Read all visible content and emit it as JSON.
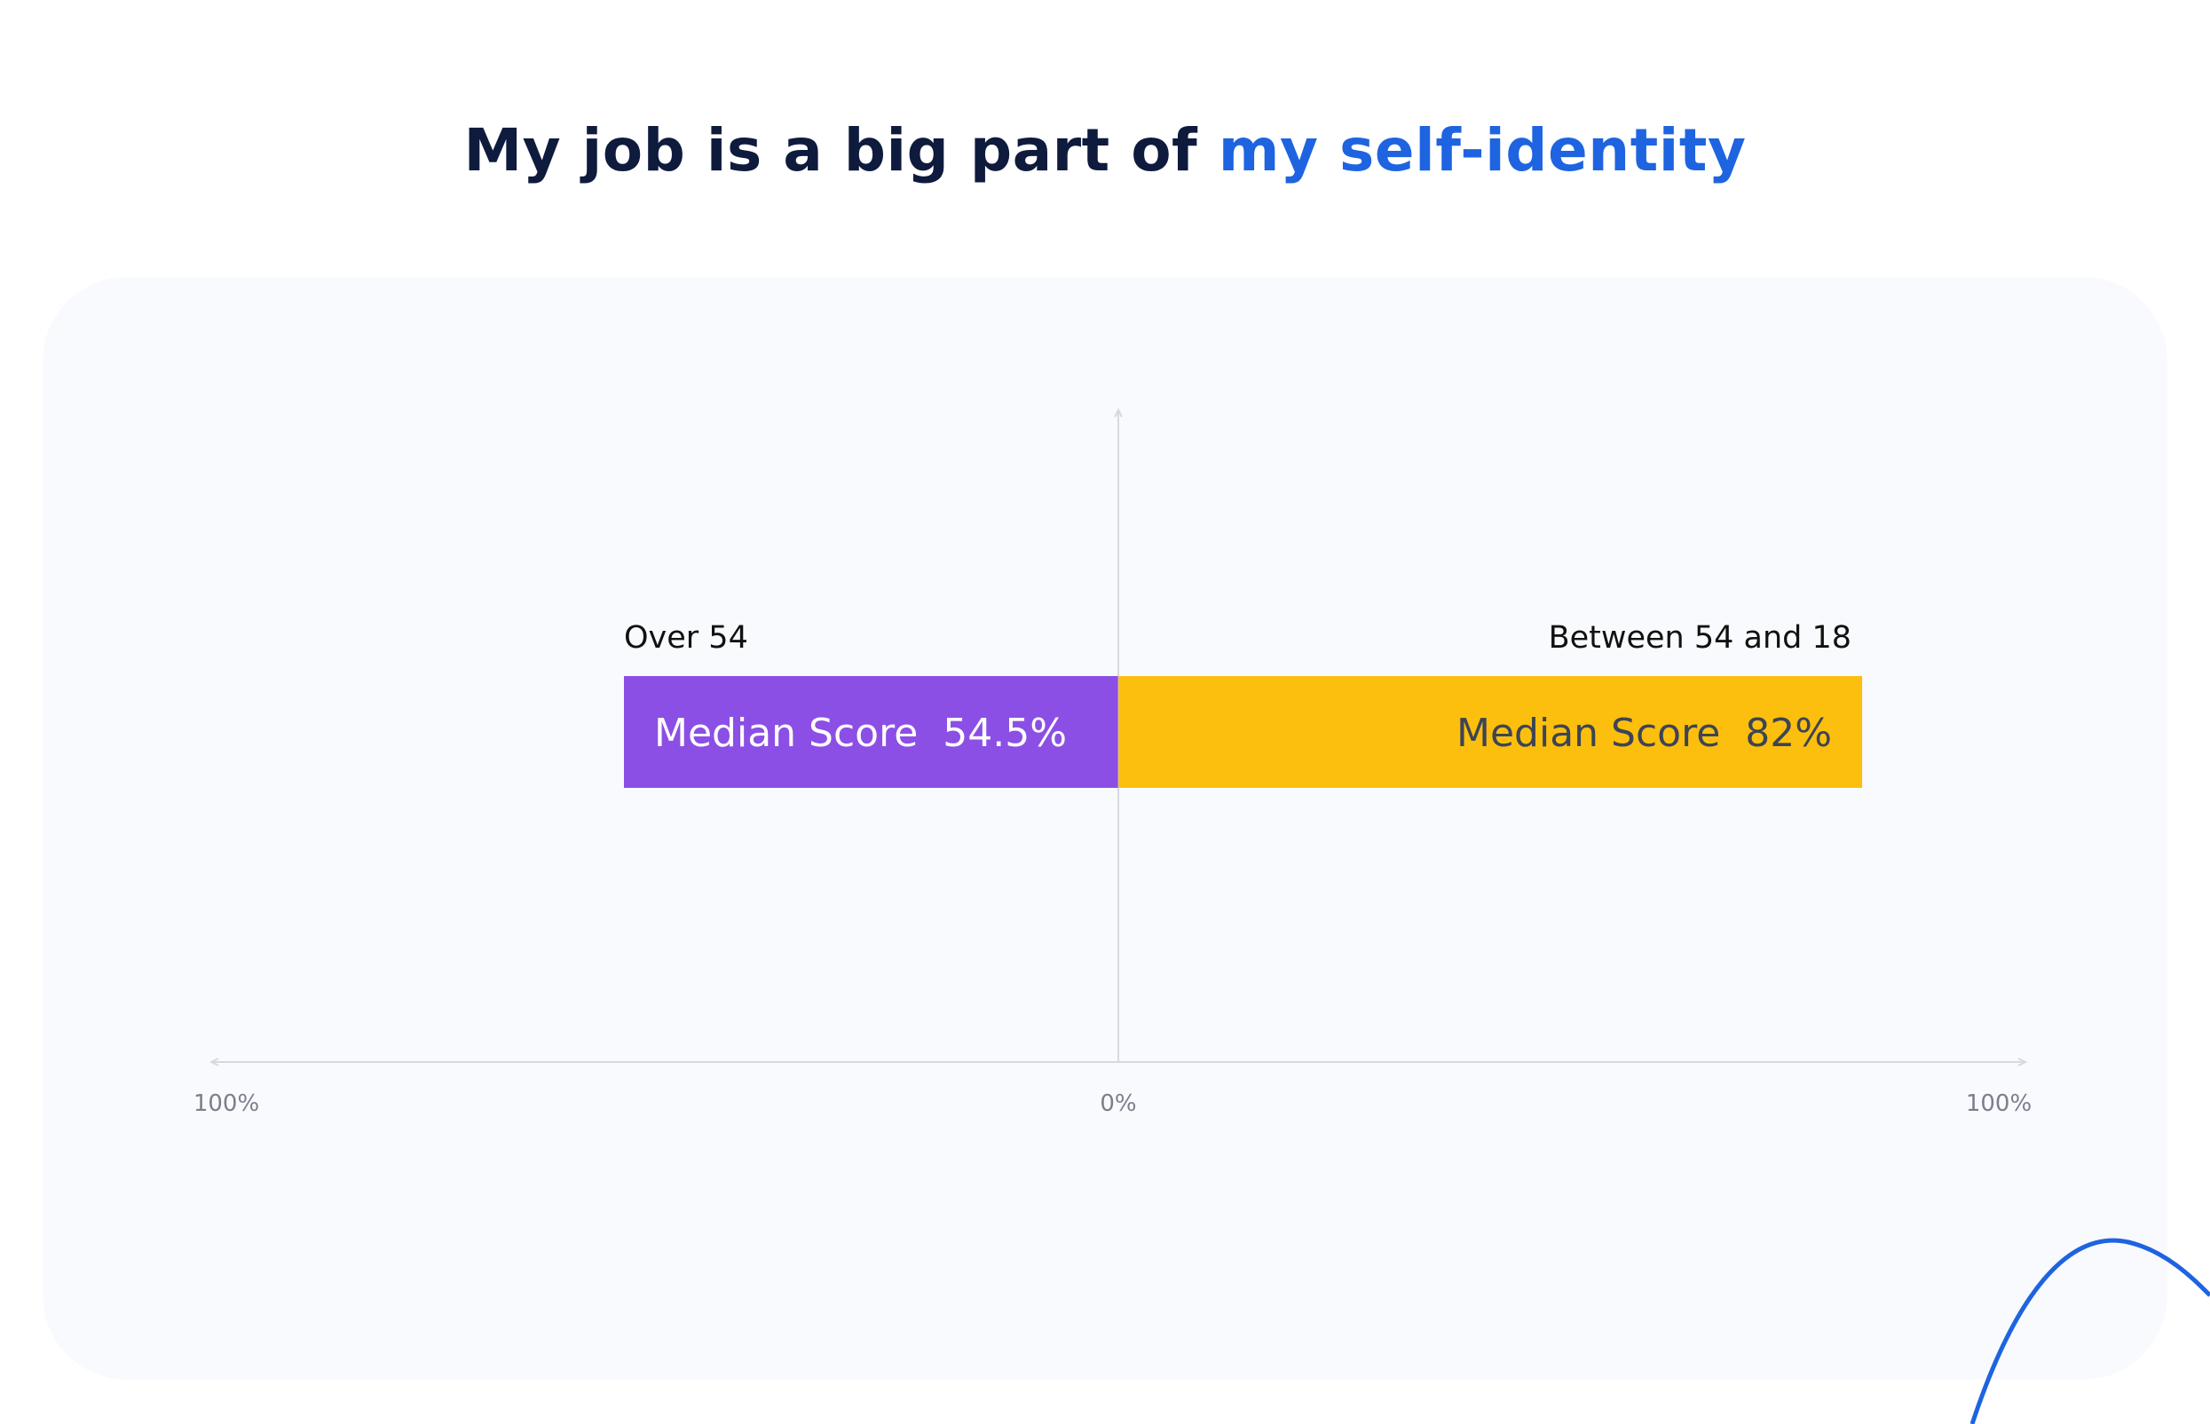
{
  "title": {
    "prefix": "My job is a big part of",
    "highlight": "my self-identity"
  },
  "chart_data": {
    "type": "bar",
    "orientation": "horizontal-diverging",
    "axis": {
      "min_label": "100%",
      "center_label": "0%",
      "max_label": "100%",
      "range": [
        -100,
        100
      ]
    },
    "series": [
      {
        "name": "Over 54",
        "side": "left",
        "value": 54.5,
        "label": "Median Score  54.5%",
        "color": "#8c4fe5",
        "text_color": "#ffffff"
      },
      {
        "name": "Between 54 and 18",
        "side": "right",
        "value": 82,
        "label": "Median Score  82%",
        "color": "#fdbf0e",
        "text_color": "#3d4454"
      }
    ],
    "grid": false
  },
  "colors": {
    "title": "#0e1b3d",
    "title_highlight": "#1e64e0",
    "card_bg": "#f9fafd",
    "axis": "#d6d9e2",
    "tick_text": "#7a7f8c",
    "deco_line": "#1e64e0"
  }
}
